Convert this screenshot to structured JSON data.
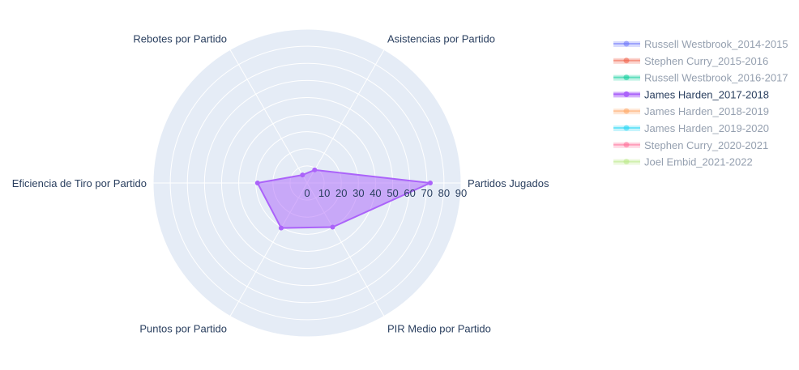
{
  "chart_data": {
    "type": "radar",
    "axes": [
      "Partidos Jugados",
      "Asistencias por Partido",
      "Rebotes por Partido",
      "Eficiencia de Tiro por Partido",
      "Puntos por Partido",
      "PIR Medio por Partido"
    ],
    "radial_ticks": [
      0,
      10,
      20,
      30,
      40,
      50,
      60,
      70,
      80,
      90
    ],
    "radial_range": [
      0,
      90
    ],
    "grid": true,
    "legend_position": "top-right",
    "series": [
      {
        "name": "Russell Westbrook_2014-2015",
        "color": "#636efa",
        "visible": false
      },
      {
        "name": "Stephen Curry_2015-2016",
        "color": "#ef553b",
        "visible": false
      },
      {
        "name": "Russell Westbrook_2016-2017",
        "color": "#00cc96",
        "visible": false
      },
      {
        "name": "James Harden_2017-2018",
        "color": "#ab63fa",
        "visible": true,
        "values": [
          72,
          8.8,
          5.4,
          29,
          30.4,
          29.8
        ]
      },
      {
        "name": "James Harden_2018-2019",
        "color": "#ffa15a",
        "visible": false
      },
      {
        "name": "James Harden_2019-2020",
        "color": "#19d3f3",
        "visible": false
      },
      {
        "name": "Stephen Curry_2020-2021",
        "color": "#ff6692",
        "visible": false
      },
      {
        "name": "Joel Embid_2021-2022",
        "color": "#b6e880",
        "visible": false
      }
    ]
  }
}
